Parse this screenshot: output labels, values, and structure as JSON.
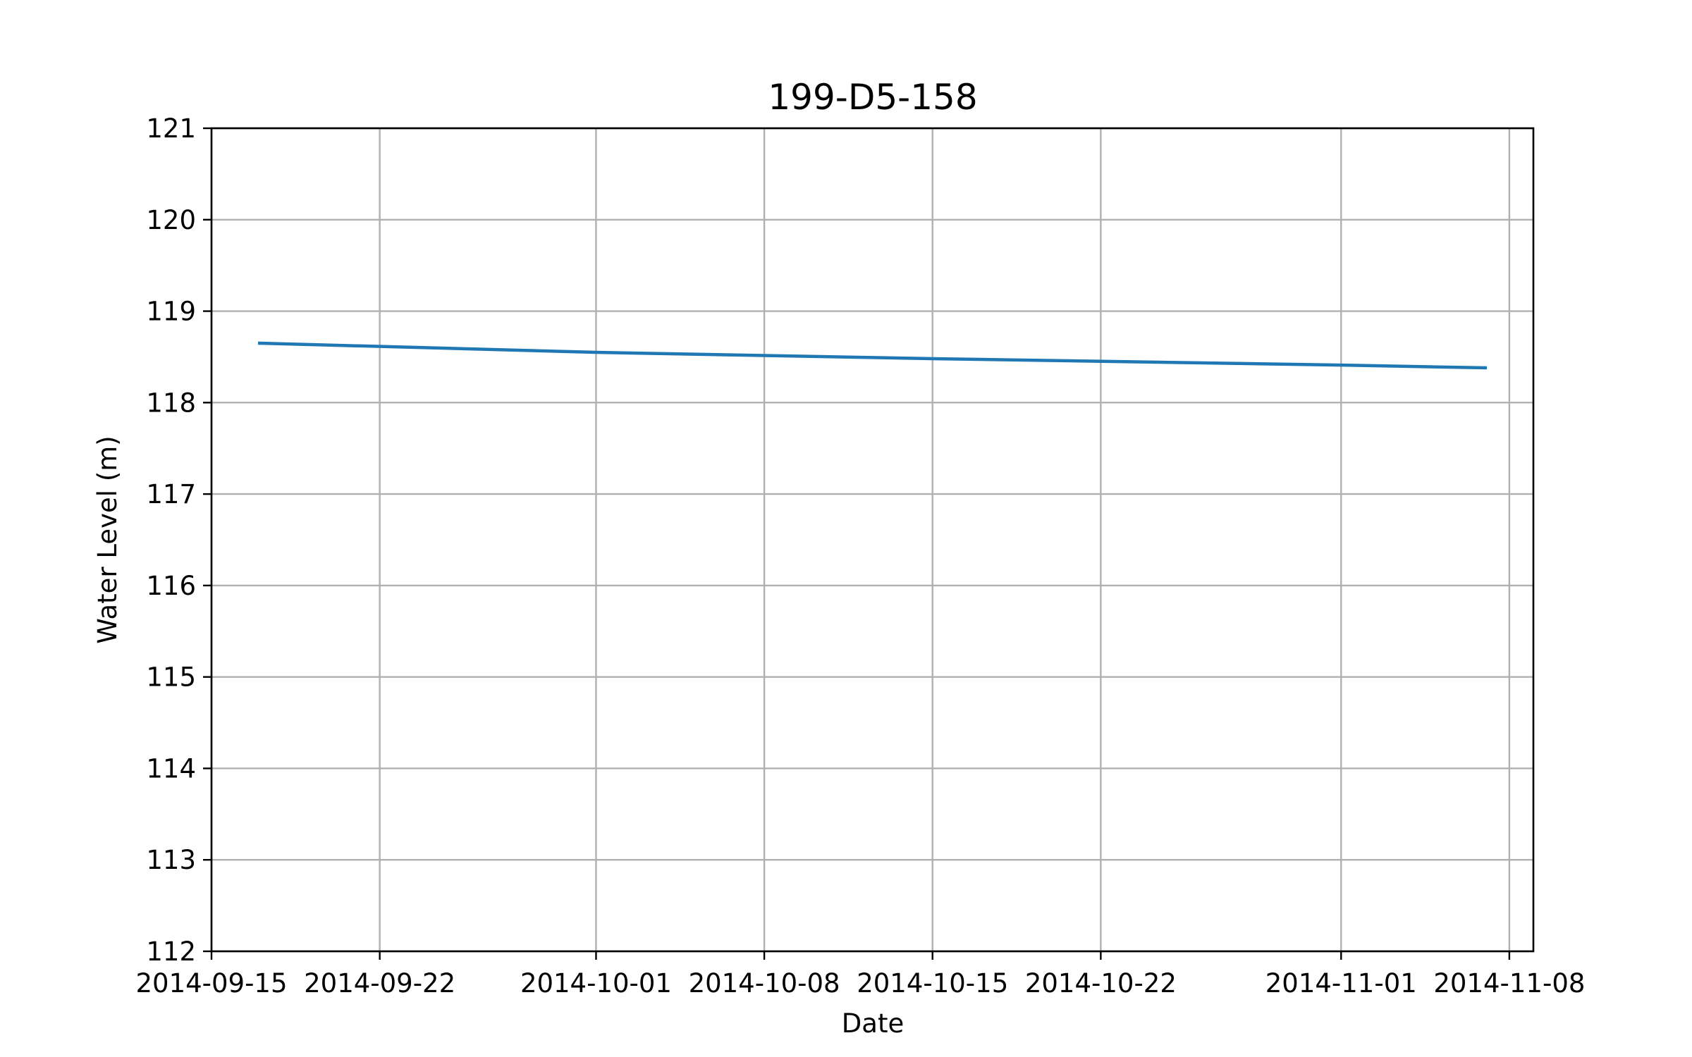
{
  "chart_data": {
    "type": "line",
    "title": "199-D5-158",
    "xlabel": "Date",
    "ylabel": "Water Level (m)",
    "x_ticks": [
      "2014-09-15",
      "2014-09-22",
      "2014-10-01",
      "2014-10-08",
      "2014-10-15",
      "2014-10-22",
      "2014-11-01",
      "2014-11-08"
    ],
    "y_ticks": [
      112,
      113,
      114,
      115,
      116,
      117,
      118,
      119,
      120,
      121
    ],
    "xlim": [
      "2014-09-15",
      "2014-11-09"
    ],
    "ylim": [
      112,
      121
    ],
    "grid": true,
    "series": [
      {
        "color": "#1f77b4",
        "x": [
          "2014-09-17",
          "2014-10-01",
          "2014-10-15",
          "2014-11-01",
          "2014-11-07"
        ],
        "y": [
          118.65,
          118.55,
          118.48,
          118.41,
          118.38
        ]
      }
    ]
  }
}
